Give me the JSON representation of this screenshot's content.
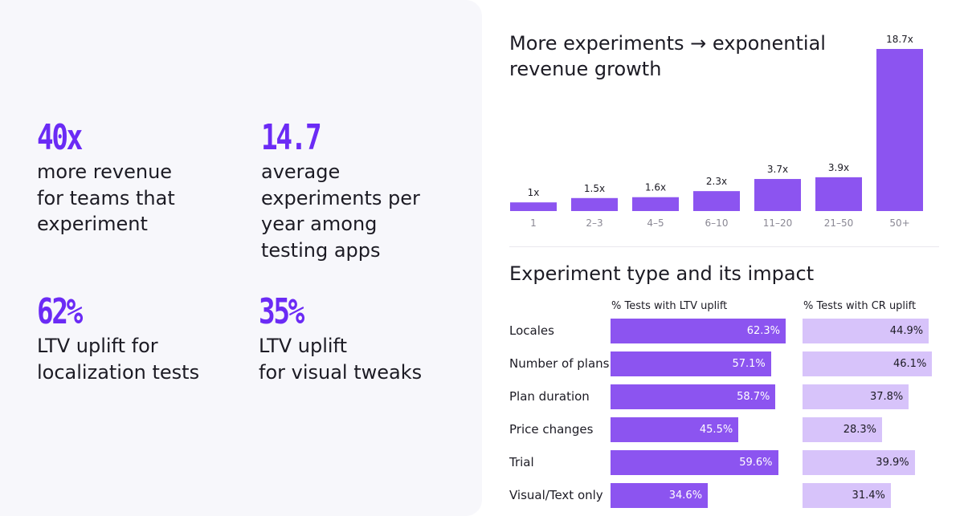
{
  "stats": [
    {
      "value": "40x",
      "label": "more revenue\nfor teams that\nexperiment"
    },
    {
      "value": "14.7",
      "label": "average\nexperiments per\nyear among\ntesting apps"
    },
    {
      "value": "62%",
      "label": "LTV uplift for\nlocalization tests"
    },
    {
      "value": "35%",
      "label": "LTV uplift\nfor visual tweaks"
    }
  ],
  "colors": {
    "accent": "#6b2bf5",
    "bar": "#8c54f0",
    "bar_light": "#d7c3fa",
    "panel_bg": "#f7f7fb"
  },
  "chart_data": [
    {
      "type": "bar",
      "title": "More experiments → exponential revenue growth",
      "categories": [
        "1",
        "2–3",
        "4–5",
        "6–10",
        "11–20",
        "21–50",
        "50+"
      ],
      "values": [
        1,
        1.5,
        1.6,
        2.3,
        3.7,
        3.9,
        18.7
      ],
      "data_labels": [
        "1x",
        "1.5x",
        "1.6x",
        "2.3x",
        "3.7x",
        "3.9x",
        "18.7x"
      ],
      "xlabel": "",
      "ylabel": "",
      "grid": false,
      "legend": "none"
    },
    {
      "type": "bar",
      "orientation": "horizontal",
      "title": "Experiment type and its impact",
      "categories": [
        "Locales",
        "Number of plans",
        "Plan duration",
        "Price changes",
        "Trial",
        "Visual/Text only"
      ],
      "series": [
        {
          "name": "% Tests with LTV uplift",
          "values": [
            62.3,
            57.1,
            58.7,
            45.5,
            59.6,
            34.6
          ],
          "labels": [
            "62.3%",
            "57.1%",
            "58.7%",
            "45.5%",
            "59.6%",
            "34.6%"
          ]
        },
        {
          "name": "% Tests with CR uplift",
          "values": [
            44.9,
            46.1,
            37.8,
            28.3,
            39.9,
            31.4
          ],
          "labels": [
            "44.9%",
            "46.1%",
            "37.8%",
            "28.3%",
            "39.9%",
            "31.4%"
          ]
        }
      ],
      "grid": false,
      "legend": "column headers"
    }
  ]
}
